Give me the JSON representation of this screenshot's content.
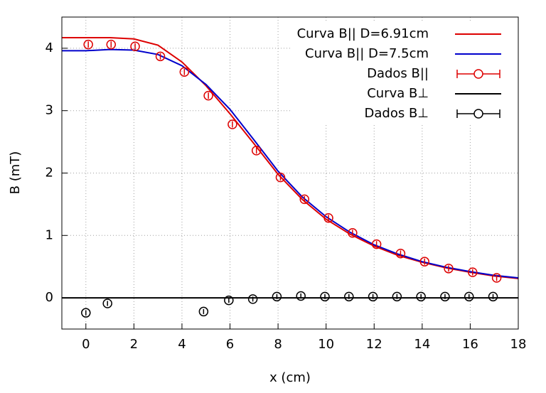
{
  "chart_data": {
    "type": "line",
    "xlabel": "x (cm)",
    "ylabel": "B (mT)",
    "xlim": [
      -1,
      18
    ],
    "ylim": [
      -0.5,
      4.5
    ],
    "xticks": [
      0,
      2,
      4,
      6,
      8,
      10,
      12,
      14,
      16,
      18
    ],
    "yticks": [
      0,
      1,
      2,
      3,
      4
    ],
    "grid": true,
    "legend": "top-right",
    "series": [
      {
        "name": "Curva B|| D=6.91cm",
        "color": "#dd0000",
        "style": "line",
        "x": [
          -1,
          0,
          1,
          2,
          3,
          4,
          5,
          6,
          7,
          8,
          9,
          10,
          11,
          12,
          13,
          14,
          15,
          16,
          17,
          18
        ],
        "values": [
          4.17,
          4.17,
          4.17,
          4.15,
          4.05,
          3.78,
          3.4,
          2.95,
          2.47,
          1.98,
          1.58,
          1.26,
          1.02,
          0.83,
          0.68,
          0.57,
          0.48,
          0.41,
          0.35,
          0.31
        ]
      },
      {
        "name": "Curva B|| D=7.5cm",
        "color": "#0000cc",
        "style": "line",
        "x": [
          -1,
          0,
          1,
          2,
          3,
          4,
          5,
          6,
          7,
          8,
          9,
          10,
          11,
          12,
          13,
          14,
          15,
          16,
          17,
          18
        ],
        "values": [
          3.96,
          3.96,
          3.98,
          3.97,
          3.9,
          3.72,
          3.42,
          3.02,
          2.53,
          2.03,
          1.62,
          1.3,
          1.05,
          0.85,
          0.7,
          0.58,
          0.49,
          0.42,
          0.36,
          0.32
        ]
      },
      {
        "name": "Dados B||",
        "color": "#dd0000",
        "style": "points",
        "x": [
          0.1,
          1.05,
          2.05,
          3.1,
          4.1,
          5.1,
          6.1,
          7.1,
          8.1,
          9.1,
          10.1,
          11.1,
          12.1,
          13.1,
          14.1,
          15.1,
          16.1,
          17.1
        ],
        "values": [
          4.06,
          4.06,
          4.03,
          3.87,
          3.62,
          3.24,
          2.78,
          2.36,
          1.93,
          1.58,
          1.28,
          1.04,
          0.86,
          0.71,
          0.58,
          0.47,
          0.41,
          0.32
        ],
        "errors": [
          0.05,
          0.05,
          0.05,
          0.05,
          0.05,
          0.05,
          0.05,
          0.05,
          0.05,
          0.05,
          0.05,
          0.05,
          0.05,
          0.05,
          0.05,
          0.05,
          0.05,
          0.05
        ]
      },
      {
        "name": "Curva B⊥",
        "color": "#000000",
        "style": "line",
        "x": [
          -1,
          18
        ],
        "values": [
          0,
          0
        ]
      },
      {
        "name": "Dados B⊥",
        "color": "#000000",
        "style": "points",
        "x": [
          0,
          0.9,
          4.9,
          5.95,
          6.95,
          7.95,
          8.95,
          9.95,
          10.95,
          11.95,
          12.95,
          13.95,
          14.95,
          15.95,
          16.95
        ],
        "values": [
          -0.24,
          -0.09,
          -0.22,
          -0.04,
          -0.02,
          0.02,
          0.03,
          0.02,
          0.02,
          0.02,
          0.02,
          0.02,
          0.02,
          0.02,
          0.02
        ],
        "errors": [
          0.04,
          0.04,
          0.04,
          0.04,
          0.04,
          0.04,
          0.04,
          0.04,
          0.04,
          0.04,
          0.04,
          0.04,
          0.04,
          0.04,
          0.04
        ]
      }
    ]
  }
}
